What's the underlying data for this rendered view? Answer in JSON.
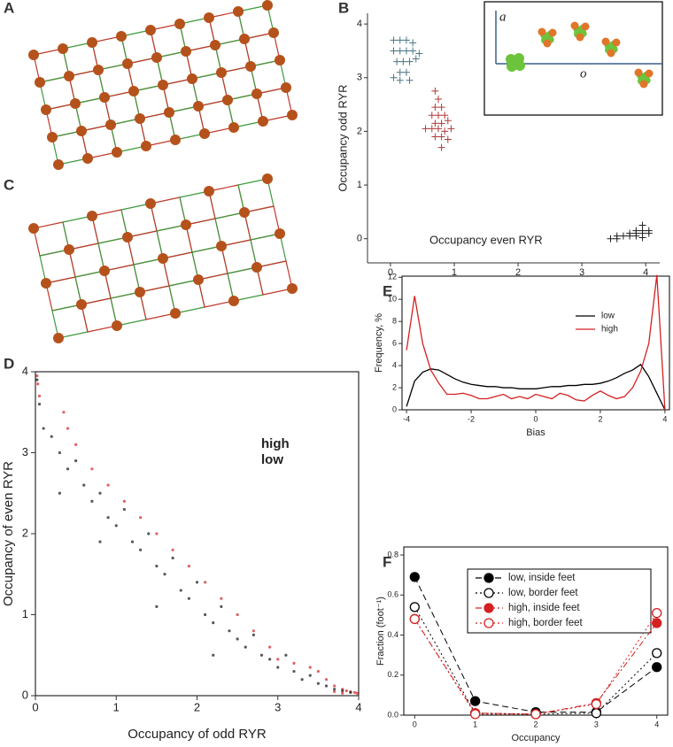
{
  "diagrams": [
    {
      "panel_label": "A"
    },
    {
      "panel_label": "C"
    }
  ],
  "inset": {
    "y_label": "a",
    "x_label": "o"
  },
  "chart_data": [
    {
      "type": "scatter",
      "panel_label": "B",
      "x_label": "Occupancy even RYR",
      "y_label": "Occupancy odd RYR",
      "xlim": [
        -0.36,
        4.22
      ],
      "ylim": [
        -0.45,
        4.2
      ],
      "xticks": [
        0,
        1,
        2,
        3,
        4
      ],
      "yticks": [
        0,
        1,
        2,
        3,
        4
      ],
      "marker": "plus",
      "series": [
        {
          "color": "#4a7585",
          "x": [
            0.05,
            0.15,
            0.25,
            0.35,
            0.05,
            0.15,
            0.25,
            0.35,
            0.45,
            0.1,
            0.2,
            0.3,
            0.4,
            0.15,
            0.25,
            0.05,
            0.15,
            0.3
          ],
          "y": [
            3.7,
            3.7,
            3.7,
            3.65,
            3.5,
            3.5,
            3.5,
            3.5,
            3.45,
            3.3,
            3.3,
            3.3,
            3.35,
            3.1,
            3.1,
            3.0,
            2.95,
            2.95
          ]
        },
        {
          "color": "#b03a3a",
          "x": [
            0.7,
            0.75,
            0.7,
            0.8,
            0.65,
            0.75,
            0.85,
            0.7,
            0.8,
            0.9,
            0.55,
            0.65,
            0.75,
            0.85,
            0.95,
            0.7,
            0.8,
            0.9,
            0.8
          ],
          "y": [
            2.75,
            2.6,
            2.45,
            2.45,
            2.3,
            2.3,
            2.3,
            2.15,
            2.15,
            2.2,
            2.05,
            2.05,
            2.05,
            2.0,
            2.05,
            1.9,
            1.9,
            1.85,
            1.7
          ]
        },
        {
          "color": "#222222",
          "x": [
            3.95,
            3.85,
            3.95,
            4.05,
            3.75,
            3.85,
            3.95,
            4.05,
            3.55,
            3.65,
            3.75,
            3.85,
            3.95,
            3.45,
            3.55
          ],
          "y": [
            0.25,
            0.15,
            0.15,
            0.15,
            0.1,
            0.1,
            0.1,
            0.1,
            0.05,
            0.05,
            0.05,
            0.05,
            0.02,
            0.0,
            0.0
          ]
        }
      ]
    },
    {
      "type": "scatter",
      "panel_label": "D",
      "x_label": "Occupancy of odd RYR",
      "y_label": "Occupancy of even RYR",
      "xlim": [
        0,
        4
      ],
      "ylim": [
        0,
        4
      ],
      "xticks": [
        0,
        1,
        2,
        3,
        4
      ],
      "yticks": [
        0,
        1,
        2,
        3,
        4
      ],
      "marker": "dot",
      "series": [
        {
          "name": "high",
          "color": "#d42020",
          "x": [
            0.02,
            0.03,
            0.05,
            0.35,
            0.4,
            0.5,
            0.7,
            0.9,
            1.1,
            1.3,
            1.5,
            1.7,
            1.9,
            2.1,
            2.3,
            2.5,
            2.7,
            2.9,
            3.0,
            3.2,
            3.4,
            3.5,
            3.6,
            3.7,
            3.8,
            3.85,
            3.9,
            3.95,
            3.98,
            3.7,
            3.8
          ],
          "y": [
            3.95,
            3.85,
            3.7,
            3.5,
            3.3,
            3.1,
            2.8,
            2.6,
            2.4,
            2.2,
            2.0,
            1.8,
            1.6,
            1.4,
            1.2,
            1.0,
            0.8,
            0.6,
            0.45,
            0.4,
            0.35,
            0.3,
            0.2,
            0.12,
            0.08,
            0.06,
            0.05,
            0.04,
            0.03,
            0.05,
            0.03
          ]
        },
        {
          "name": "low",
          "color": "#111111",
          "x": [
            0.02,
            0.05,
            0.1,
            0.2,
            0.3,
            0.4,
            0.5,
            0.6,
            0.7,
            0.8,
            0.9,
            1.0,
            1.1,
            1.2,
            1.3,
            1.4,
            1.5,
            1.6,
            1.7,
            1.8,
            1.9,
            2.0,
            2.1,
            2.2,
            2.3,
            2.4,
            2.5,
            2.6,
            2.7,
            2.8,
            2.9,
            3.0,
            3.1,
            3.2,
            3.3,
            3.4,
            3.5,
            3.6,
            3.7,
            3.8,
            3.9,
            0.8,
            1.5,
            2.2,
            0.3
          ],
          "y": [
            3.9,
            3.6,
            3.3,
            3.2,
            3.0,
            2.8,
            2.9,
            2.6,
            2.4,
            2.5,
            2.2,
            2.1,
            2.3,
            1.9,
            1.8,
            2.0,
            1.6,
            1.5,
            1.7,
            1.3,
            1.2,
            1.4,
            1.0,
            0.9,
            1.1,
            0.8,
            0.7,
            0.6,
            0.75,
            0.5,
            0.45,
            0.35,
            0.5,
            0.3,
            0.2,
            0.25,
            0.15,
            0.12,
            0.08,
            0.06,
            0.04,
            1.9,
            1.1,
            0.5,
            2.5
          ]
        }
      ]
    },
    {
      "type": "line",
      "panel_label": "E",
      "x_label": "Bias",
      "y_label": "Frequency, %",
      "xlim": [
        -4.14,
        4.14
      ],
      "ylim": [
        0,
        12.1
      ],
      "xticks": [
        -4,
        -2,
        0,
        2,
        4
      ],
      "yticks": [
        0,
        2,
        4,
        6,
        8,
        10,
        12
      ],
      "x": [
        -4,
        -3.75,
        -3.5,
        -3.25,
        -3,
        -2.75,
        -2.5,
        -2.25,
        -2,
        -1.75,
        -1.5,
        -1.25,
        -1,
        -0.75,
        -0.5,
        -0.25,
        0,
        0.25,
        0.5,
        0.75,
        1,
        1.25,
        1.5,
        1.75,
        2,
        2.25,
        2.5,
        2.75,
        3,
        3.25,
        3.5,
        3.75,
        4
      ],
      "series": [
        {
          "name": "low",
          "color": "#000000",
          "values": [
            0.3,
            2.6,
            3.4,
            3.7,
            3.6,
            3.2,
            2.8,
            2.5,
            2.3,
            2.2,
            2.1,
            2.1,
            2.0,
            2.0,
            1.9,
            1.9,
            1.9,
            2.0,
            2.1,
            2.1,
            2.2,
            2.2,
            2.3,
            2.3,
            2.4,
            2.6,
            2.9,
            3.3,
            3.6,
            4.1,
            3.0,
            1.5,
            0.0
          ]
        },
        {
          "name": "high",
          "color": "#d42020",
          "values": [
            5.4,
            10.3,
            6.0,
            3.6,
            2.4,
            1.4,
            1.4,
            1.5,
            1.3,
            1.0,
            1.0,
            1.2,
            1.4,
            1.0,
            1.2,
            1.0,
            1.4,
            1.2,
            1.0,
            1.5,
            1.3,
            0.9,
            0.8,
            1.3,
            1.7,
            1.3,
            1.0,
            1.2,
            2.0,
            3.5,
            6.0,
            12.2,
            0.0
          ]
        }
      ]
    },
    {
      "type": "line",
      "panel_label": "F",
      "x_label": "Occupancy",
      "y_label": "Fraction (foot⁻¹)",
      "markers": true,
      "xlim": [
        -0.18,
        4.18
      ],
      "ylim": [
        0,
        0.84
      ],
      "xticks": [
        0,
        1,
        2,
        3,
        4
      ],
      "yticks": [
        {
          "value": 0,
          "label": "0.0"
        },
        0.2,
        0.4,
        0.6,
        0.8
      ],
      "x": [
        0,
        1,
        2,
        3,
        4
      ],
      "series": [
        {
          "name": "low, inside feet",
          "color": "#000000",
          "filled": true,
          "dash": "dashed",
          "values": [
            0.69,
            0.07,
            0.015,
            0.015,
            0.24
          ]
        },
        {
          "name": "low, border feet",
          "color": "#000000",
          "filled": false,
          "dash": "dotted",
          "values": [
            0.54,
            0.01,
            0.005,
            0.01,
            0.31
          ]
        },
        {
          "name": "high, inside feet",
          "color": "#d42020",
          "filled": true,
          "dash": "dashdot",
          "values": [
            0.48,
            0.01,
            0.005,
            0.06,
            0.46
          ]
        },
        {
          "name": "high, border feet",
          "color": "#d42020",
          "filled": false,
          "dash": "dotted",
          "values": [
            0.48,
            0.005,
            0.005,
            0.055,
            0.51
          ]
        }
      ]
    }
  ]
}
